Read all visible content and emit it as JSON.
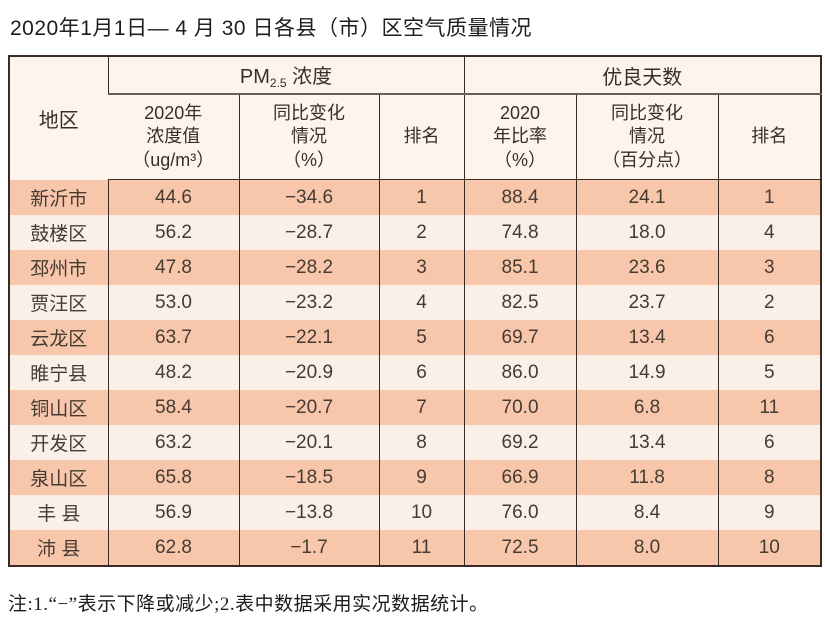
{
  "page": {
    "title": "2020年1月1日— 4 月 30 日各县（市）区空气质量情况",
    "note": "注:1.“−”表示下降或减少;2.表中数据采用实况数据统计。"
  },
  "table": {
    "region_header": "地区",
    "group_headers": {
      "pm25_prefix": "PM",
      "pm25_sub": "2.5",
      "pm25_suffix": " 浓度",
      "good_days": "优良天数"
    },
    "sub_headers": {
      "pm_value_l1": "2020年",
      "pm_value_l2": "浓度值",
      "pm_value_l3": "（ug/m³）",
      "pm_change_l1": "同比变化",
      "pm_change_l2": "情况",
      "pm_change_l3": "（%）",
      "pm_rank": "排名",
      "gd_rate_l1": "2020",
      "gd_rate_l2": "年比率",
      "gd_rate_l3": "（%）",
      "gd_change_l1": "同比变化",
      "gd_change_l2": "情况",
      "gd_change_l3": "（百分点）",
      "gd_rank": "排名"
    },
    "rows": [
      {
        "region": "新沂市",
        "pm_value": "44.6",
        "pm_change": "−34.6",
        "pm_rank": "1",
        "gd_rate": "88.4",
        "gd_change": "24.1",
        "gd_rank": "1"
      },
      {
        "region": "鼓楼区",
        "pm_value": "56.2",
        "pm_change": "−28.7",
        "pm_rank": "2",
        "gd_rate": "74.8",
        "gd_change": "18.0",
        "gd_rank": "4"
      },
      {
        "region": "邳州市",
        "pm_value": "47.8",
        "pm_change": "−28.2",
        "pm_rank": "3",
        "gd_rate": "85.1",
        "gd_change": "23.6",
        "gd_rank": "3"
      },
      {
        "region": "贾汪区",
        "pm_value": "53.0",
        "pm_change": "−23.2",
        "pm_rank": "4",
        "gd_rate": "82.5",
        "gd_change": "23.7",
        "gd_rank": "2"
      },
      {
        "region": "云龙区",
        "pm_value": "63.7",
        "pm_change": "−22.1",
        "pm_rank": "5",
        "gd_rate": "69.7",
        "gd_change": "13.4",
        "gd_rank": "6"
      },
      {
        "region": "睢宁县",
        "pm_value": "48.2",
        "pm_change": "−20.9",
        "pm_rank": "6",
        "gd_rate": "86.0",
        "gd_change": "14.9",
        "gd_rank": "5"
      },
      {
        "region": "铜山区",
        "pm_value": "58.4",
        "pm_change": "−20.7",
        "pm_rank": "7",
        "gd_rate": "70.0",
        "gd_change": "6.8",
        "gd_rank": "11"
      },
      {
        "region": "开发区",
        "pm_value": "63.2",
        "pm_change": "−20.1",
        "pm_rank": "8",
        "gd_rate": "69.2",
        "gd_change": "13.4",
        "gd_rank": "6"
      },
      {
        "region": "泉山区",
        "pm_value": "65.8",
        "pm_change": "−18.5",
        "pm_rank": "9",
        "gd_rate": "66.9",
        "gd_change": "11.8",
        "gd_rank": "8"
      },
      {
        "region": "丰 县",
        "pm_value": "56.9",
        "pm_change": "−13.8",
        "pm_rank": "10",
        "gd_rate": "76.0",
        "gd_change": "8.4",
        "gd_rank": "9"
      },
      {
        "region": "沛 县",
        "pm_value": "62.8",
        "pm_change": "−1.7",
        "pm_rank": "11",
        "gd_rate": "72.5",
        "gd_change": "8.0",
        "gd_rank": "10"
      }
    ]
  },
  "colors": {
    "row_odd_bg": "#f8c6ab",
    "row_even_bg": "#fbf0e8",
    "header_bg": "#fdf4ed",
    "border": "#3a2a24",
    "text": "#453b33"
  }
}
